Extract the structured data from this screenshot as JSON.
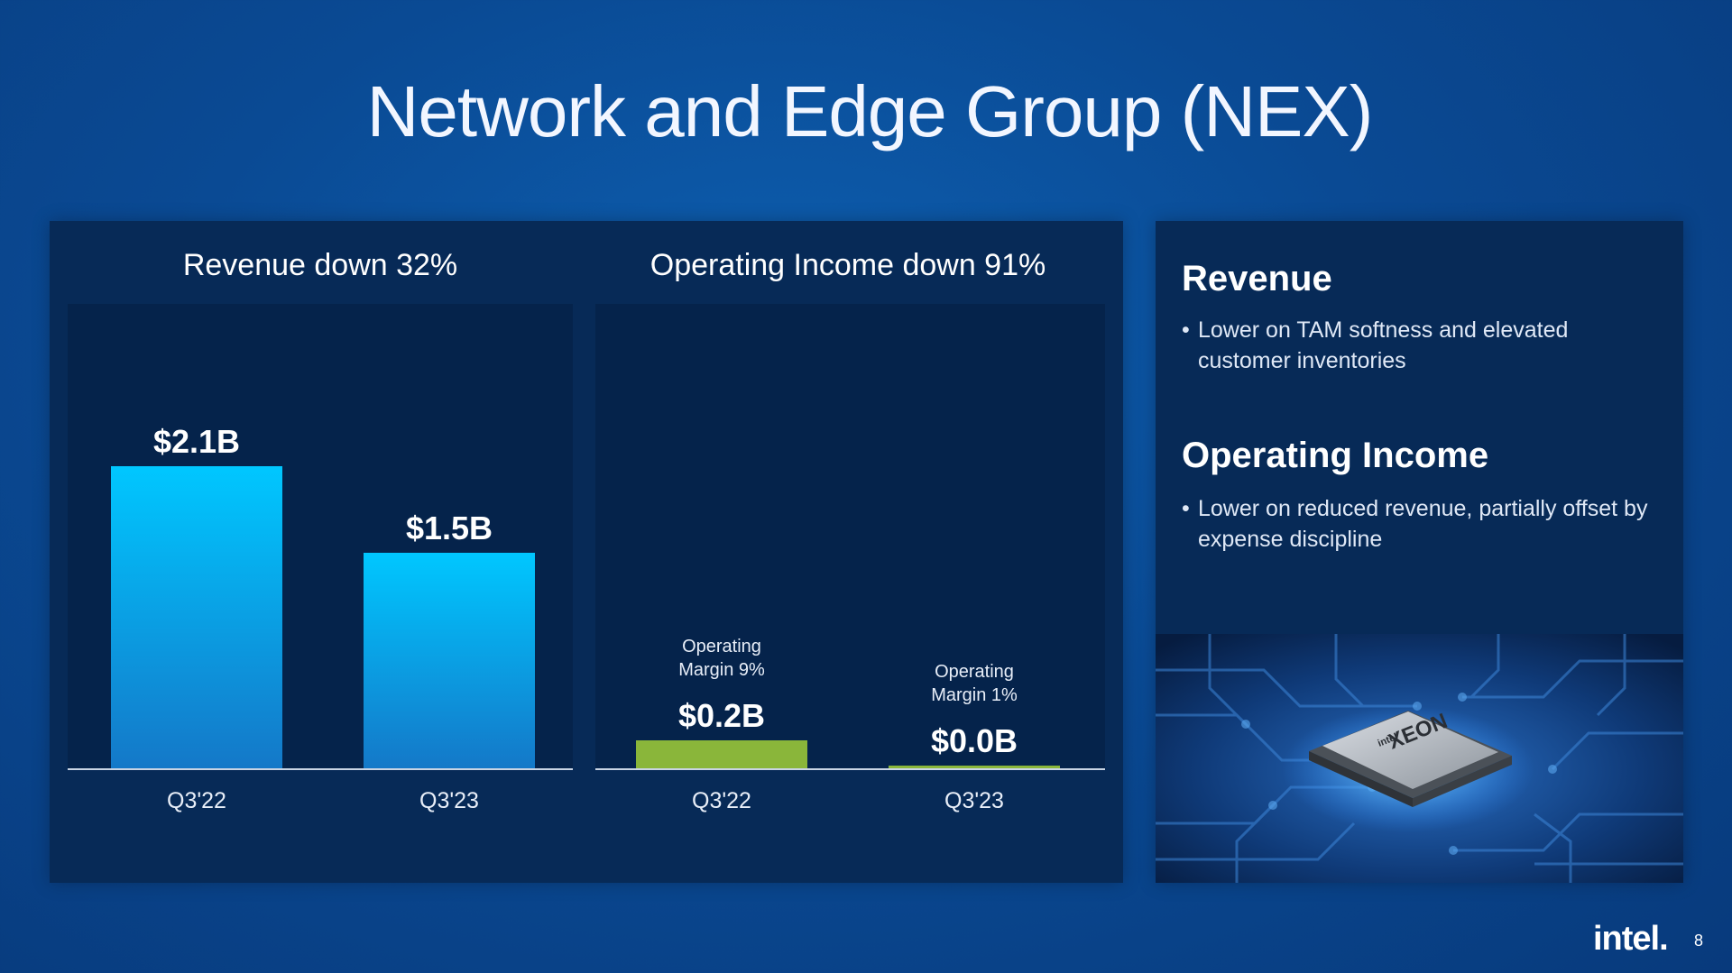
{
  "slide": {
    "title": "Network and Edge Group (NEX)",
    "page_number": "8",
    "logo_text": "intel."
  },
  "sidebar": {
    "sections": [
      {
        "heading": "Revenue",
        "bullet": "Lower on TAM softness and elevated customer inventories"
      },
      {
        "heading": "Operating Income",
        "bullet": "Lower on reduced revenue, partially offset by expense discipline"
      }
    ],
    "image_labels": {
      "chip_brand": "intel",
      "chip_name": "XEON"
    }
  },
  "colors": {
    "background": "#0a4a94",
    "panel": "#072a57",
    "plot": "#05234b",
    "revenue_bar_top": "#00c7ff",
    "revenue_bar_bottom": "#1478c8",
    "income_bar": "#8ab63a"
  },
  "chart_data": [
    {
      "type": "bar",
      "title": "Revenue down 32%",
      "categories": [
        "Q3'22",
        "Q3'23"
      ],
      "values": [
        2.1,
        1.5
      ],
      "data_labels": [
        "$2.1B",
        "$1.5B"
      ],
      "unit": "$B",
      "ylim": [
        0,
        2.5
      ],
      "grid": false,
      "legend": "none"
    },
    {
      "type": "bar",
      "title": "Operating Income down 91%",
      "categories": [
        "Q3'22",
        "Q3'23"
      ],
      "values": [
        0.2,
        0.02
      ],
      "data_labels": [
        "$0.2B",
        "$0.0B"
      ],
      "annotations": [
        "Operating Margin 9%",
        "Operating Margin 1%"
      ],
      "unit": "$B",
      "ylim": [
        0,
        2.5
      ],
      "grid": false,
      "legend": "none"
    }
  ]
}
